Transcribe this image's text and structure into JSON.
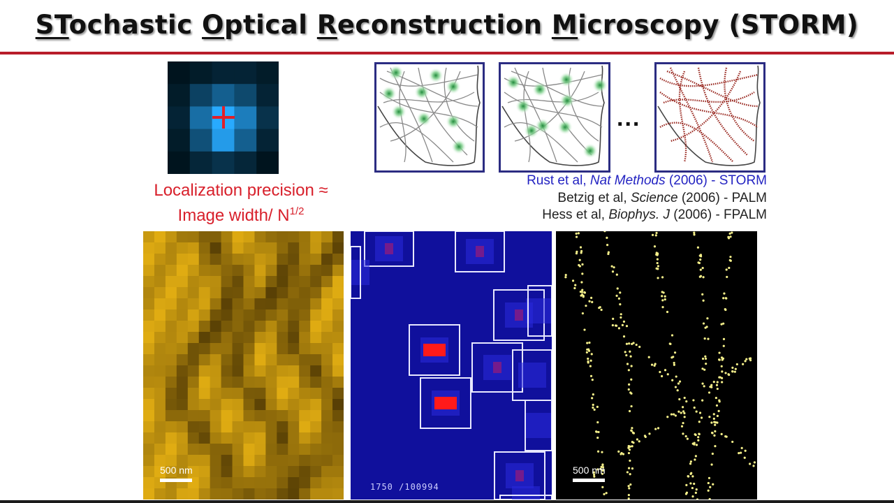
{
  "slide": {
    "title_parts": [
      {
        "text": "ST",
        "u": true
      },
      {
        "text": "ochastic ",
        "u": false
      },
      {
        "text": "O",
        "u": true
      },
      {
        "text": "ptical ",
        "u": false
      },
      {
        "text": "R",
        "u": true
      },
      {
        "text": "econstruction ",
        "u": false
      },
      {
        "text": "M",
        "u": true
      },
      {
        "text": "icroscopy (STORM)",
        "u": false
      }
    ],
    "precision_line1": "Localization precision ≈",
    "precision_line2": "Image width/ N",
    "precision_exp": "1/2",
    "ellipsis": "...",
    "citations": {
      "rust": {
        "pre": "Rust et al, ",
        "journal": "Nat Methods",
        "post": " (2006) - STORM"
      },
      "betzig": {
        "pre": "Betzig et al, ",
        "journal": "Science",
        "post": " (2006) - PALM"
      },
      "hess": {
        "pre": "Hess et al, ",
        "journal": "Biophys. J",
        "post": " (2006) - FPALM"
      }
    },
    "panels": {
      "widefield_scale": "500 nm",
      "frame_counter": "1750 /100994",
      "storm_scale": "500 nm"
    }
  },
  "colors": {
    "accent_red": "#b81d2a",
    "frame_navy": "#2b2c82",
    "citation_blue": "#2323c2",
    "localization_yellow": "#f4ef8a",
    "wide_gold": "#c99c10",
    "storm_bg": "#000000",
    "blinking_bg": "#1010a0"
  }
}
